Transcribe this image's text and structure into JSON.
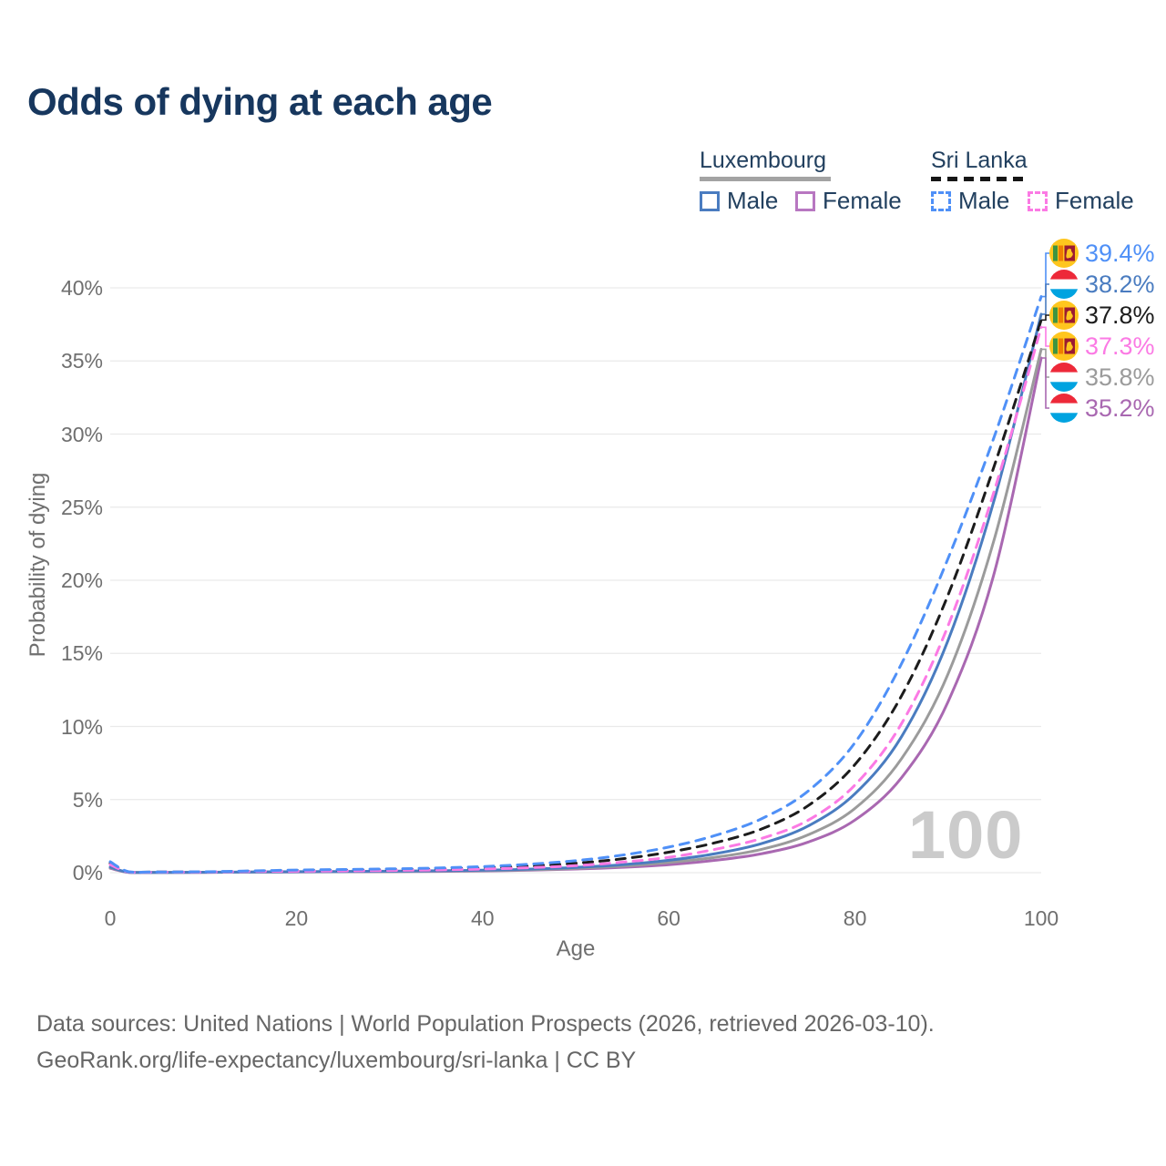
{
  "title": "Odds of dying at each age",
  "legend": {
    "groups": [
      {
        "label": "Luxembourg",
        "line_style": "solid",
        "underline_color": "#a3a3a3",
        "items": [
          {
            "label": "Male",
            "color": "#4a7cc0"
          },
          {
            "label": "Female",
            "color": "#a968b1"
          }
        ]
      },
      {
        "label": "Sri Lanka",
        "line_style": "dashed",
        "underline_color": "#161616",
        "items": [
          {
            "label": "Male",
            "color": "#4f90f7"
          },
          {
            "label": "Female",
            "color": "#fb7ae4"
          }
        ]
      }
    ]
  },
  "axes": {
    "x_title": "Age",
    "y_title": "Probability of dying",
    "x_ticks": [
      "0",
      "20",
      "40",
      "60",
      "80",
      "100"
    ],
    "x_tick_values": [
      0,
      20,
      40,
      60,
      80,
      100
    ],
    "y_ticks": [
      "0%",
      "5%",
      "10%",
      "15%",
      "20%",
      "25%",
      "30%",
      "35%",
      "40%"
    ],
    "y_tick_values": [
      0,
      5,
      10,
      15,
      20,
      25,
      30,
      35,
      40
    ],
    "x_range": [
      0,
      100
    ],
    "y_range_percent": [
      0,
      40
    ],
    "grid": "horizontal-only"
  },
  "watermark": "100",
  "chart_data": {
    "type": "line",
    "title": "Odds of dying at each age",
    "xlabel": "Age",
    "ylabel": "Probability of dying",
    "x_ages": [
      0,
      2,
      5,
      10,
      15,
      20,
      25,
      30,
      35,
      40,
      45,
      50,
      55,
      60,
      65,
      70,
      75,
      80,
      85,
      90,
      95,
      100
    ],
    "unit": "percent",
    "series": [
      {
        "name": "Sri Lanka Male",
        "country": "Sri Lanka",
        "sex": "male",
        "color": "#4f90f7",
        "dash": "dashed",
        "end_value_label": "39.4%",
        "values": [
          0.75,
          0.06,
          0.05,
          0.06,
          0.12,
          0.18,
          0.22,
          0.26,
          0.32,
          0.42,
          0.58,
          0.82,
          1.2,
          1.75,
          2.55,
          3.7,
          5.6,
          8.9,
          14.3,
          21.5,
          29.9,
          39.4
        ]
      },
      {
        "name": "Luxembourg Male",
        "country": "Luxembourg",
        "sex": "male",
        "color": "#4a7cc0",
        "dash": "solid",
        "end_value_label": "38.2%",
        "values": [
          0.38,
          0.03,
          0.02,
          0.03,
          0.05,
          0.07,
          0.08,
          0.1,
          0.13,
          0.17,
          0.24,
          0.36,
          0.55,
          0.85,
          1.3,
          2.0,
          3.2,
          5.4,
          9.3,
          15.9,
          25.6,
          38.2
        ]
      },
      {
        "name": "Sri Lanka Both sexes",
        "country": "Sri Lanka",
        "sex": "both",
        "color": "#1c1c1c",
        "dash": "dashed",
        "end_value_label": "37.8%",
        "values": [
          0.65,
          0.05,
          0.045,
          0.05,
          0.1,
          0.14,
          0.17,
          0.2,
          0.25,
          0.33,
          0.45,
          0.64,
          0.95,
          1.4,
          2.05,
          3.0,
          4.6,
          7.4,
          12.1,
          19.0,
          27.9,
          37.8
        ]
      },
      {
        "name": "Sri Lanka Female",
        "country": "Sri Lanka",
        "sex": "female",
        "color": "#fb7ae4",
        "dash": "dashed",
        "end_value_label": "37.3%",
        "values": [
          0.55,
          0.045,
          0.04,
          0.045,
          0.08,
          0.1,
          0.12,
          0.15,
          0.19,
          0.25,
          0.34,
          0.48,
          0.72,
          1.05,
          1.6,
          2.35,
          3.6,
          6.0,
          10.2,
          16.9,
          26.2,
          37.3
        ]
      },
      {
        "name": "Luxembourg Both sexes",
        "country": "Luxembourg",
        "sex": "both",
        "color": "#9b9b9b",
        "dash": "solid",
        "end_value_label": "35.8%",
        "values": [
          0.34,
          0.025,
          0.018,
          0.025,
          0.04,
          0.06,
          0.07,
          0.08,
          0.11,
          0.14,
          0.2,
          0.3,
          0.45,
          0.7,
          1.05,
          1.6,
          2.6,
          4.4,
          7.8,
          13.6,
          22.9,
          35.8
        ]
      },
      {
        "name": "Luxembourg Female",
        "country": "Luxembourg",
        "sex": "female",
        "color": "#a968b1",
        "dash": "solid",
        "end_value_label": "35.2%",
        "values": [
          0.3,
          0.02,
          0.015,
          0.02,
          0.035,
          0.05,
          0.06,
          0.07,
          0.09,
          0.12,
          0.17,
          0.25,
          0.37,
          0.55,
          0.85,
          1.3,
          2.1,
          3.6,
          6.5,
          11.7,
          20.6,
          35.2
        ]
      }
    ]
  },
  "end_labels": [
    {
      "label": "39.4%",
      "flag": "lk",
      "color": "#4f90f7",
      "series_index": 0
    },
    {
      "label": "38.2%",
      "flag": "lu",
      "color": "#4a7cc0",
      "series_index": 1
    },
    {
      "label": "37.8%",
      "flag": "lk",
      "color": "#1c1c1c",
      "series_index": 2
    },
    {
      "label": "37.3%",
      "flag": "lk",
      "color": "#fb7ae4",
      "series_index": 3
    },
    {
      "label": "35.8%",
      "flag": "lu",
      "color": "#9b9b9b",
      "series_index": 4
    },
    {
      "label": "35.2%",
      "flag": "lu",
      "color": "#a968b1",
      "series_index": 5
    }
  ],
  "flag_colors": {
    "lk": {
      "gold": "#ffc61e",
      "green": "#3f9440",
      "orange": "#f07d00",
      "maroon": "#9b1b32"
    },
    "lu": {
      "red": "#ed2939",
      "white": "#ffffff",
      "blue": "#00a3e0"
    }
  },
  "footer": {
    "line1": "Data sources: United Nations | World Population Prospects (2026, retrieved 2026-03-10).",
    "line2": "GeoRank.org/life-expectancy/luxembourg/sri-lanka | CC BY"
  }
}
